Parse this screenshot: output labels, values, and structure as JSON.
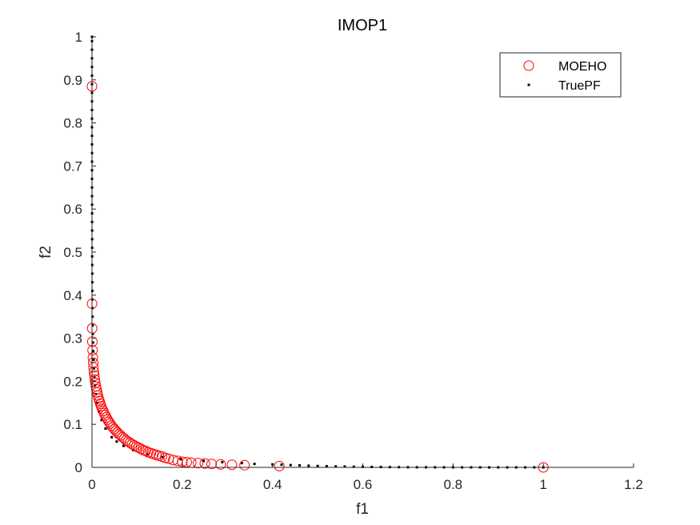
{
  "chart_data": {
    "type": "scatter",
    "title": "IMOP1",
    "xlabel": "f1",
    "ylabel": "f2",
    "xlim": [
      0,
      1.2
    ],
    "ylim": [
      0,
      1
    ],
    "xticks": [
      "0",
      "0.2",
      "0.4",
      "0.6",
      "0.8",
      "1",
      "1.2"
    ],
    "yticks": [
      "0",
      "0.1",
      "0.2",
      "0.3",
      "0.4",
      "0.5",
      "0.6",
      "0.7",
      "0.8",
      "0.9",
      "1"
    ],
    "grid": false,
    "legend_position": "top-right",
    "series": [
      {
        "name": "MOEHO",
        "marker": "open-circle",
        "color": "#ff0000",
        "points": [
          [
            0.0,
            0.885
          ],
          [
            0.0001,
            0.38
          ],
          [
            0.0004,
            0.323
          ],
          [
            0.0008,
            0.292
          ],
          [
            0.0013,
            0.272
          ],
          [
            0.0019,
            0.255
          ],
          [
            0.0026,
            0.243
          ],
          [
            0.0034,
            0.232
          ],
          [
            0.0043,
            0.222
          ],
          [
            0.0052,
            0.213
          ],
          [
            0.0063,
            0.204
          ],
          [
            0.0074,
            0.196
          ],
          [
            0.0087,
            0.188
          ],
          [
            0.01,
            0.181
          ],
          [
            0.0115,
            0.174
          ],
          [
            0.013,
            0.167
          ],
          [
            0.0147,
            0.16
          ],
          [
            0.0165,
            0.154
          ],
          [
            0.0183,
            0.148
          ],
          [
            0.0203,
            0.142
          ],
          [
            0.0224,
            0.136
          ],
          [
            0.0246,
            0.131
          ],
          [
            0.0269,
            0.126
          ],
          [
            0.0293,
            0.121
          ],
          [
            0.0318,
            0.116
          ],
          [
            0.0345,
            0.111
          ],
          [
            0.0372,
            0.106
          ],
          [
            0.0401,
            0.102
          ],
          [
            0.0431,
            0.097
          ],
          [
            0.0462,
            0.093
          ],
          [
            0.0494,
            0.089
          ],
          [
            0.0528,
            0.085
          ],
          [
            0.0563,
            0.081
          ],
          [
            0.0599,
            0.077
          ],
          [
            0.0636,
            0.074
          ],
          [
            0.0675,
            0.07
          ],
          [
            0.0715,
            0.067
          ],
          [
            0.0756,
            0.063
          ],
          [
            0.0799,
            0.06
          ],
          [
            0.0843,
            0.057
          ],
          [
            0.0888,
            0.054
          ],
          [
            0.0935,
            0.051
          ],
          [
            0.0983,
            0.048
          ],
          [
            0.1033,
            0.046
          ],
          [
            0.1084,
            0.043
          ],
          [
            0.1137,
            0.04
          ],
          [
            0.1191,
            0.038
          ],
          [
            0.1247,
            0.035
          ],
          [
            0.1304,
            0.033
          ],
          [
            0.1363,
            0.031
          ],
          [
            0.1424,
            0.029
          ],
          [
            0.1486,
            0.027
          ],
          [
            0.155,
            0.025
          ],
          [
            0.162,
            0.022
          ],
          [
            0.17,
            0.02
          ],
          [
            0.18,
            0.017
          ],
          [
            0.19,
            0.015
          ],
          [
            0.2,
            0.013
          ],
          [
            0.21,
            0.012
          ],
          [
            0.22,
            0.011
          ],
          [
            0.235,
            0.01
          ],
          [
            0.25,
            0.009
          ],
          [
            0.265,
            0.008
          ],
          [
            0.285,
            0.007
          ],
          [
            0.31,
            0.006
          ],
          [
            0.338,
            0.005
          ],
          [
            0.415,
            0.003
          ],
          [
            1.0,
            0.0
          ]
        ]
      },
      {
        "name": "TruePF",
        "marker": "dot",
        "color": "#000000",
        "points": [
          [
            0.0,
            1.0
          ],
          [
            0.0,
            0.99
          ],
          [
            0.0,
            0.97
          ],
          [
            0.0,
            0.95
          ],
          [
            0.0,
            0.93
          ],
          [
            0.0,
            0.91
          ],
          [
            0.0,
            0.89
          ],
          [
            0.0,
            0.87
          ],
          [
            0.0,
            0.85
          ],
          [
            0.0,
            0.83
          ],
          [
            0.0,
            0.81
          ],
          [
            0.0,
            0.79
          ],
          [
            0.0001,
            0.77
          ],
          [
            0.0001,
            0.75
          ],
          [
            0.0001,
            0.73
          ],
          [
            0.0001,
            0.71
          ],
          [
            0.0001,
            0.69
          ],
          [
            0.0001,
            0.67
          ],
          [
            0.0001,
            0.65
          ],
          [
            0.0001,
            0.63
          ],
          [
            0.0002,
            0.61
          ],
          [
            0.0002,
            0.59
          ],
          [
            0.0002,
            0.57
          ],
          [
            0.0003,
            0.55
          ],
          [
            0.0003,
            0.53
          ],
          [
            0.0004,
            0.51
          ],
          [
            0.0004,
            0.49
          ],
          [
            0.0005,
            0.47
          ],
          [
            0.0006,
            0.45
          ],
          [
            0.0007,
            0.43
          ],
          [
            0.0008,
            0.41
          ],
          [
            0.0009,
            0.39
          ],
          [
            0.0011,
            0.37
          ],
          [
            0.0013,
            0.35
          ],
          [
            0.0016,
            0.33
          ],
          [
            0.0019,
            0.31
          ],
          [
            0.0023,
            0.29
          ],
          [
            0.0028,
            0.27
          ],
          [
            0.0035,
            0.25
          ],
          [
            0.0043,
            0.23
          ],
          [
            0.0054,
            0.21
          ],
          [
            0.0068,
            0.19
          ],
          [
            0.0088,
            0.17
          ],
          [
            0.0116,
            0.15
          ],
          [
            0.0155,
            0.13
          ],
          [
            0.0213,
            0.11
          ],
          [
            0.03,
            0.09
          ],
          [
            0.0437,
            0.07
          ],
          [
            0.0548,
            0.06
          ],
          [
            0.07,
            0.05
          ],
          [
            0.0915,
            0.04
          ],
          [
            0.1241,
            0.03
          ],
          [
            0.1561,
            0.024
          ],
          [
            0.1964,
            0.019
          ],
          [
            0.2474,
            0.015
          ],
          [
            0.2886,
            0.012
          ],
          [
            0.332,
            0.01
          ],
          [
            0.36,
            0.008
          ],
          [
            0.4,
            0.007
          ],
          [
            0.42,
            0.0062
          ],
          [
            0.44,
            0.0053
          ],
          [
            0.46,
            0.0046
          ],
          [
            0.48,
            0.0039
          ],
          [
            0.5,
            0.0033
          ],
          [
            0.52,
            0.0027
          ],
          [
            0.54,
            0.0023
          ],
          [
            0.56,
            0.0019
          ],
          [
            0.58,
            0.0015
          ],
          [
            0.6,
            0.0012
          ],
          [
            0.62,
            0.001
          ],
          [
            0.64,
            0.0008
          ],
          [
            0.66,
            0.0006
          ],
          [
            0.68,
            0.0004
          ],
          [
            0.7,
            0.0003
          ],
          [
            0.72,
            0.0002
          ],
          [
            0.74,
            0.0002
          ],
          [
            0.76,
            0.0001
          ],
          [
            0.78,
            0.0001
          ],
          [
            0.8,
            0.0001
          ],
          [
            0.82,
            0.0
          ],
          [
            0.84,
            0.0
          ],
          [
            0.86,
            0.0
          ],
          [
            0.88,
            0.0
          ],
          [
            0.9,
            0.0
          ],
          [
            0.92,
            0.0
          ],
          [
            0.94,
            0.0
          ],
          [
            0.96,
            0.0
          ],
          [
            0.98,
            0.0
          ],
          [
            1.0,
            0.0
          ]
        ]
      }
    ]
  }
}
